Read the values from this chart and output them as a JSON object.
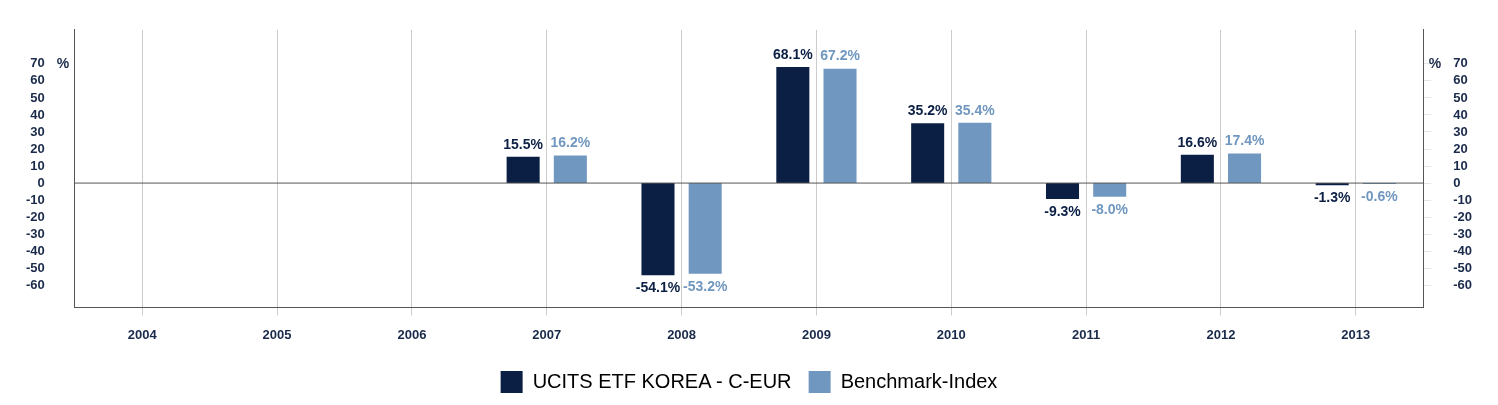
{
  "chart_data": {
    "type": "bar",
    "ylabel": "%",
    "y2label": "%",
    "categories": [
      "2004",
      "2005",
      "2006",
      "2007",
      "2008",
      "2009",
      "2010",
      "2011",
      "2012",
      "2013"
    ],
    "series": [
      {
        "name": "UCITS ETF KOREA - C-EUR",
        "color": "#0b1f45",
        "values": [
          null,
          null,
          null,
          15.5,
          -54.1,
          68.1,
          35.2,
          -9.3,
          16.6,
          -1.3
        ],
        "value_labels": [
          null,
          null,
          null,
          "15.5%",
          "-54.1%",
          "68.1%",
          "35.2%",
          "-9.3%",
          "16.6%",
          "-1.3%"
        ]
      },
      {
        "name": "Benchmark-Index",
        "color": "#7097bf",
        "values": [
          null,
          null,
          null,
          16.2,
          -53.2,
          67.2,
          35.4,
          -8.0,
          17.4,
          -0.6
        ],
        "value_labels": [
          null,
          null,
          null,
          "16.2%",
          "-53.2%",
          "67.2%",
          "35.4%",
          "-8.0%",
          "17.4%",
          "-0.6%"
        ]
      }
    ],
    "ylim": [
      -73,
      90
    ],
    "yticks": [
      -60,
      -50,
      -40,
      -30,
      -20,
      -10,
      0,
      10,
      20,
      30,
      40,
      50,
      60,
      70
    ],
    "y2lim": [
      -73,
      90
    ],
    "y2ticks": [
      -60,
      -50,
      -40,
      -30,
      -20,
      -10,
      0,
      10,
      20,
      30,
      40,
      50,
      60,
      70
    ],
    "grid": "x",
    "legend": "bottom"
  }
}
